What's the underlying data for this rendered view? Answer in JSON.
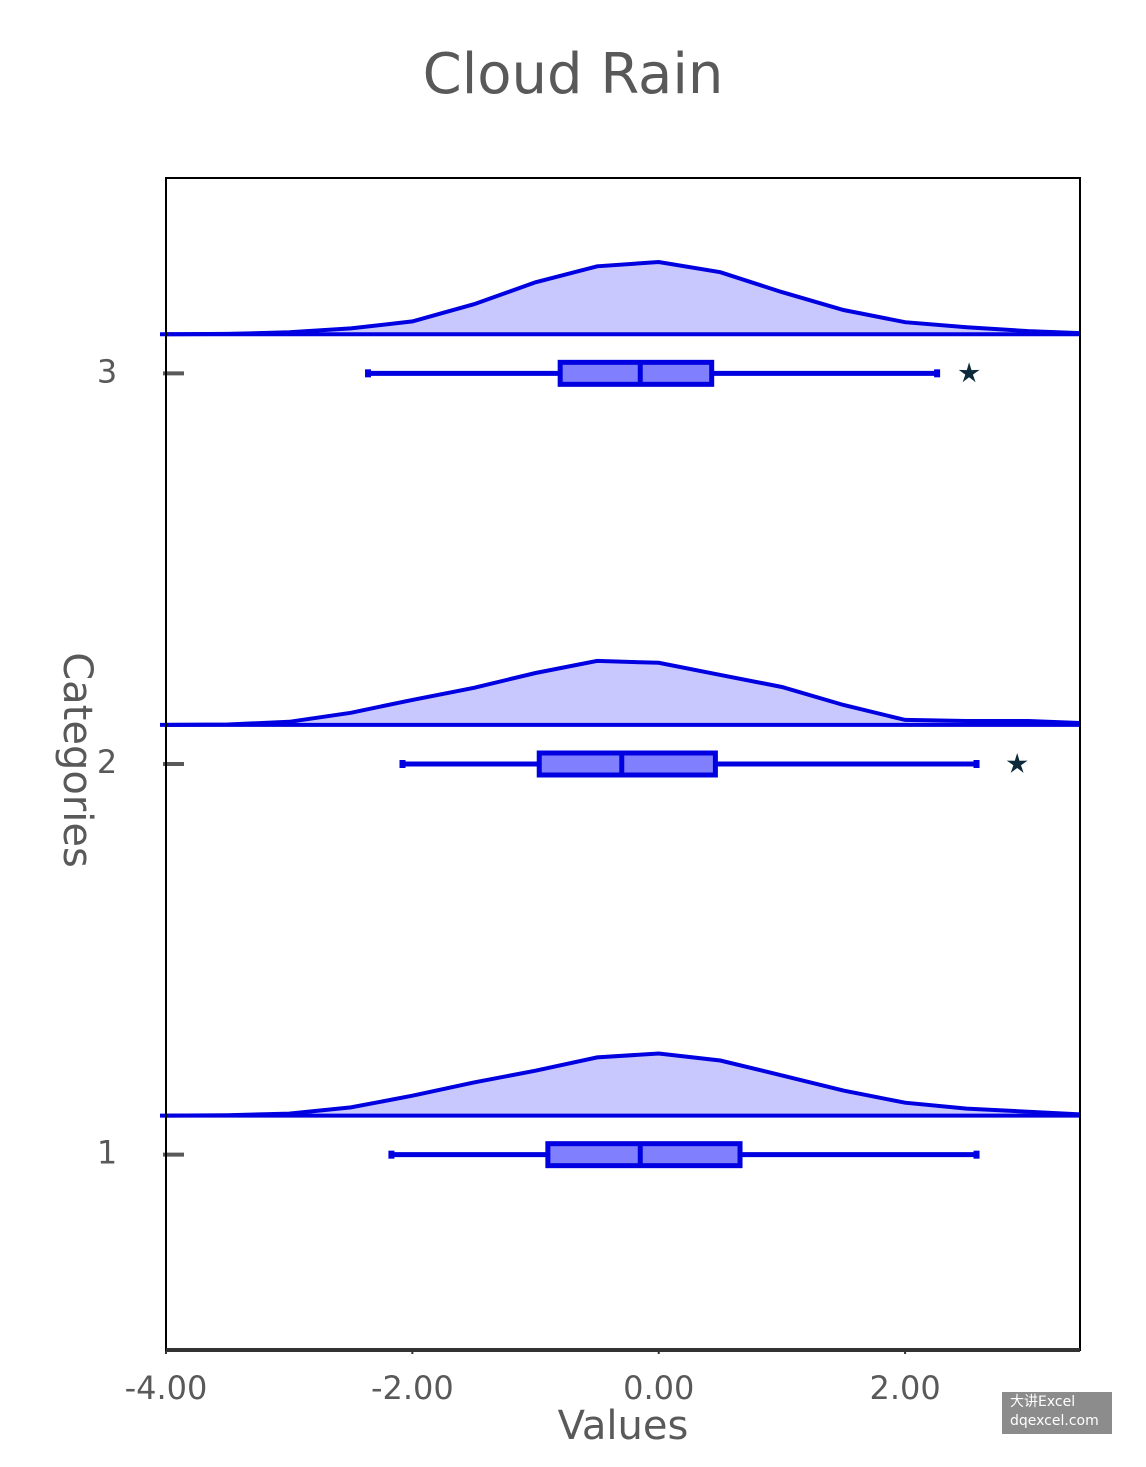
{
  "chart_data": {
    "type": "raincloud",
    "title": "Cloud Rain",
    "x_label": "Values",
    "y_label": "Categories",
    "categories": [
      "1",
      "2",
      "3"
    ],
    "xlim": [
      -4,
      3.42
    ],
    "xticks": [
      {
        "value": -4,
        "label": "-4.00"
      },
      {
        "value": -2,
        "label": "-2.00"
      },
      {
        "value": 0,
        "label": "0.00"
      },
      {
        "value": 2,
        "label": "2.00"
      }
    ],
    "color": "#0000e0",
    "cloud_fill": "#c8c8ff",
    "box_fill": "#8080ff",
    "outlier_color": "#0d2a3a",
    "boxes": [
      {
        "low": -2.17,
        "q1": -0.9,
        "median": -0.15,
        "q3": 0.66,
        "high": 2.58,
        "outliers": []
      },
      {
        "low": -2.08,
        "q1": -0.97,
        "median": -0.3,
        "q3": 0.46,
        "high": 2.58,
        "outliers": [
          2.91
        ]
      },
      {
        "low": -2.36,
        "q1": -0.8,
        "median": -0.15,
        "q3": 0.43,
        "high": 2.26,
        "outliers": [
          2.52
        ]
      }
    ],
    "density_x": [
      -4,
      -3.5,
      -3,
      -2.5,
      -2,
      -1.5,
      -1,
      -0.5,
      0,
      0.5,
      1,
      1.5,
      2,
      2.5,
      3,
      3.42
    ],
    "densities": [
      [
        0,
        0.001,
        0.005,
        0.021,
        0.051,
        0.085,
        0.115,
        0.149,
        0.159,
        0.141,
        0.103,
        0.064,
        0.033,
        0.018,
        0.01,
        0.003
      ],
      [
        0,
        0.001,
        0.008,
        0.031,
        0.064,
        0.095,
        0.133,
        0.164,
        0.159,
        0.128,
        0.097,
        0.051,
        0.013,
        0.01,
        0.01,
        0.005
      ],
      [
        0,
        0.001,
        0.005,
        0.015,
        0.033,
        0.077,
        0.133,
        0.174,
        0.185,
        0.159,
        0.108,
        0.062,
        0.031,
        0.018,
        0.008,
        0.003
      ]
    ],
    "watermark": [
      "大讲Excel",
      "dqexcel.com"
    ]
  }
}
